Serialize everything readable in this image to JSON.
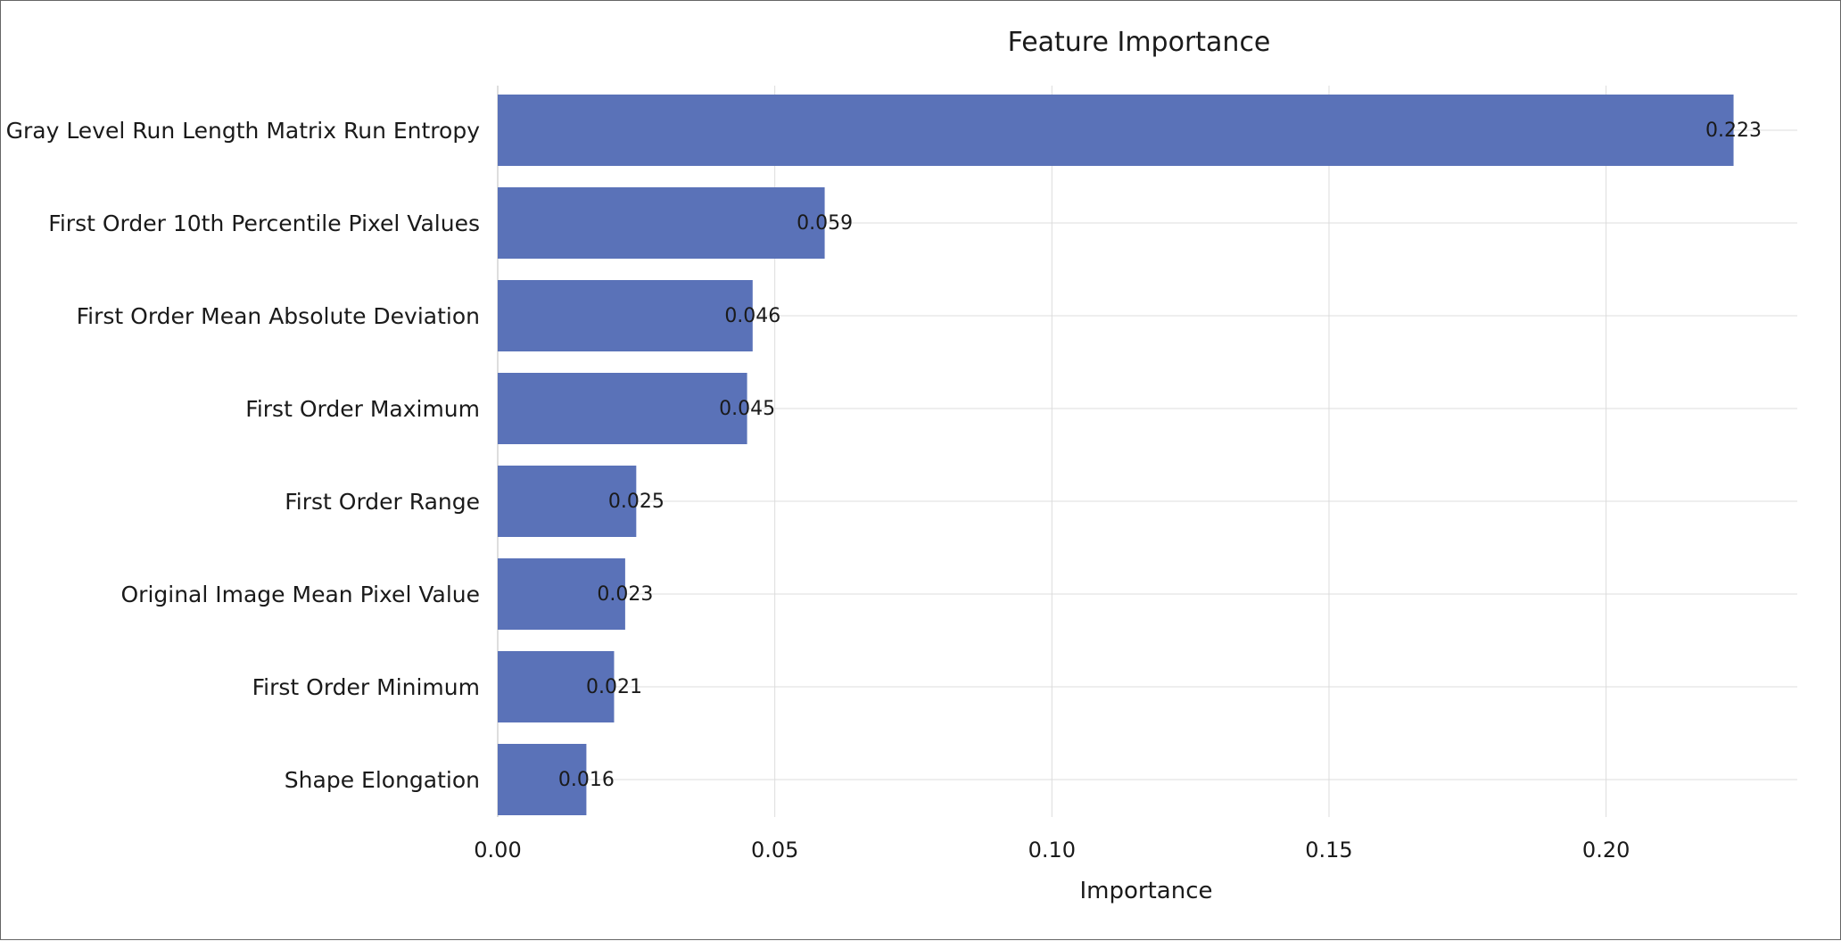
{
  "chart_data": {
    "type": "bar",
    "orientation": "horizontal",
    "title": "Feature Importance",
    "xlabel": "Importance",
    "ylabel": "",
    "xlim": [
      0,
      0.2345
    ],
    "xticks": [
      0.0,
      0.05,
      0.1,
      0.15,
      0.2
    ],
    "xtick_labels": [
      "0.00",
      "0.05",
      "0.10",
      "0.15",
      "0.20"
    ],
    "grid": true,
    "bar_color": "#5a72b8",
    "categories": [
      "Gray Level Run Length Matrix Run Entropy",
      "First Order 10th Percentile Pixel Values",
      "First Order Mean Absolute Deviation",
      "First Order Maximum",
      "First Order Range",
      "Original Image Mean Pixel Value",
      "First Order Minimum",
      "Shape Elongation"
    ],
    "values": [
      0.223,
      0.059,
      0.046,
      0.045,
      0.025,
      0.023,
      0.021,
      0.016
    ],
    "value_labels": [
      "0.223",
      "0.059",
      "0.046",
      "0.045",
      "0.025",
      "0.023",
      "0.021",
      "0.016"
    ]
  }
}
